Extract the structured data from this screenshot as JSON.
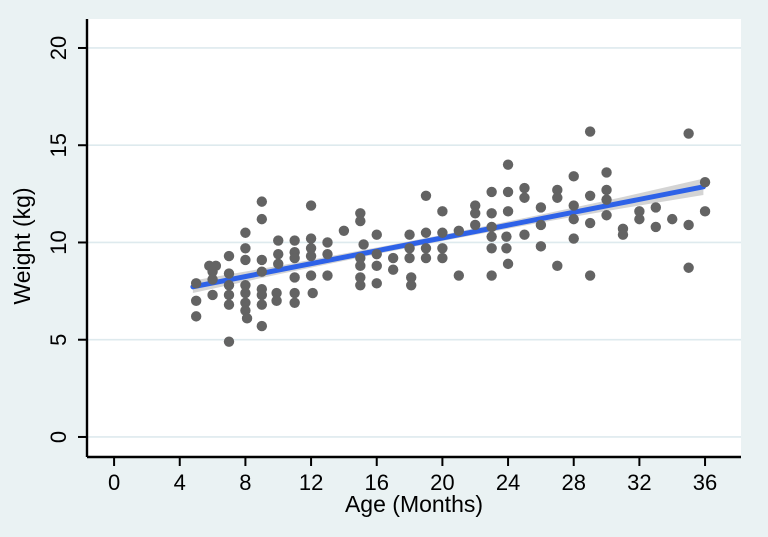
{
  "figure": {
    "background_color": "#EAF2F3",
    "plot_background_color": "#FFFFFF",
    "grid_color": "#DEEAEE",
    "axis_color": "#000000",
    "text_color": "#000000"
  },
  "chart_data": {
    "type": "scatter",
    "title": "",
    "xlabel": "Age (Months)",
    "ylabel": "Weight (kg)",
    "x_ticks": [
      0,
      4,
      8,
      12,
      16,
      20,
      24,
      28,
      32,
      36
    ],
    "y_ticks": [
      0,
      5,
      10,
      15,
      20
    ],
    "xlim": [
      -1.65,
      38.19
    ],
    "ylim": [
      -1.03,
      21.49
    ],
    "grid": "horizontal",
    "legend": "none",
    "marker_color": "#636363",
    "fit_line_color": "#2E62E8",
    "ci_band_color": "#CFCFCF",
    "fit_line": {
      "x": [
        4.8,
        35.9
      ],
      "y": [
        7.72,
        12.86
      ]
    },
    "ci_band": [
      {
        "x": 4.8,
        "lo": 7.4,
        "hi": 8.04
      },
      {
        "x": 10.0,
        "lo": 8.36,
        "hi": 8.8
      },
      {
        "x": 16.0,
        "lo": 9.4,
        "hi": 9.74
      },
      {
        "x": 20.4,
        "lo": 10.14,
        "hi": 10.46
      },
      {
        "x": 26.0,
        "lo": 11.03,
        "hi": 11.43
      },
      {
        "x": 31.0,
        "lo": 11.76,
        "hi": 12.34
      },
      {
        "x": 35.9,
        "lo": 12.44,
        "hi": 13.28
      }
    ],
    "points": [
      [
        5,
        7.9
      ],
      [
        5,
        7.0
      ],
      [
        5,
        6.2
      ],
      [
        5.8,
        8.8
      ],
      [
        6.2,
        8.8
      ],
      [
        6,
        8.5
      ],
      [
        6,
        8.1
      ],
      [
        6,
        7.3
      ],
      [
        7,
        9.3
      ],
      [
        7,
        8.4
      ],
      [
        7,
        7.8
      ],
      [
        7,
        7.3
      ],
      [
        7,
        6.8
      ],
      [
        7,
        4.9
      ],
      [
        8,
        10.5
      ],
      [
        8,
        9.7
      ],
      [
        8,
        9.1
      ],
      [
        8,
        7.8
      ],
      [
        8,
        7.4
      ],
      [
        8,
        6.9
      ],
      [
        8,
        6.5
      ],
      [
        8.1,
        6.1
      ],
      [
        9,
        12.1
      ],
      [
        9,
        11.2
      ],
      [
        9,
        9.1
      ],
      [
        9,
        8.5
      ],
      [
        9,
        7.6
      ],
      [
        9,
        7.3
      ],
      [
        9,
        6.8
      ],
      [
        9,
        5.7
      ],
      [
        10,
        10.1
      ],
      [
        10,
        9.4
      ],
      [
        10,
        8.9
      ],
      [
        9.9,
        7.4
      ],
      [
        9.9,
        7.0
      ],
      [
        11,
        10.1
      ],
      [
        11,
        9.5
      ],
      [
        11,
        9.2
      ],
      [
        11,
        8.2
      ],
      [
        11,
        7.4
      ],
      [
        11,
        6.9
      ],
      [
        12,
        11.9
      ],
      [
        12,
        10.2
      ],
      [
        12,
        9.7
      ],
      [
        12,
        9.3
      ],
      [
        12,
        8.3
      ],
      [
        12.1,
        7.4
      ],
      [
        13,
        10.0
      ],
      [
        13,
        9.4
      ],
      [
        13,
        8.3
      ],
      [
        14,
        10.6
      ],
      [
        15,
        11.5
      ],
      [
        15,
        11.1
      ],
      [
        15.2,
        9.9
      ],
      [
        15,
        9.2
      ],
      [
        15,
        8.8
      ],
      [
        15,
        8.2
      ],
      [
        15,
        7.8
      ],
      [
        16,
        10.4
      ],
      [
        16,
        9.4
      ],
      [
        16,
        8.8
      ],
      [
        16,
        7.9
      ],
      [
        17,
        9.2
      ],
      [
        17,
        8.6
      ],
      [
        18,
        10.4
      ],
      [
        18,
        9.7
      ],
      [
        18,
        9.2
      ],
      [
        18.1,
        8.2
      ],
      [
        18.1,
        7.8
      ],
      [
        19,
        12.4
      ],
      [
        19,
        10.5
      ],
      [
        19,
        9.7
      ],
      [
        19,
        9.2
      ],
      [
        20,
        11.6
      ],
      [
        20,
        10.5
      ],
      [
        20,
        9.7
      ],
      [
        20,
        9.2
      ],
      [
        21,
        10.6
      ],
      [
        21,
        8.3
      ],
      [
        22,
        11.9
      ],
      [
        22,
        11.5
      ],
      [
        22,
        10.9
      ],
      [
        23,
        12.6
      ],
      [
        23,
        11.5
      ],
      [
        23,
        10.8
      ],
      [
        23,
        10.3
      ],
      [
        23,
        9.7
      ],
      [
        23,
        8.3
      ],
      [
        24,
        14.0
      ],
      [
        24,
        12.6
      ],
      [
        24,
        11.6
      ],
      [
        23.9,
        10.3
      ],
      [
        23.9,
        9.7
      ],
      [
        24,
        8.9
      ],
      [
        25,
        12.8
      ],
      [
        25,
        12.3
      ],
      [
        25,
        10.4
      ],
      [
        26,
        11.8
      ],
      [
        26,
        10.9
      ],
      [
        26,
        9.8
      ],
      [
        27,
        12.7
      ],
      [
        27,
        12.3
      ],
      [
        27,
        8.8
      ],
      [
        28,
        13.4
      ],
      [
        28,
        11.9
      ],
      [
        28,
        11.2
      ],
      [
        28,
        10.2
      ],
      [
        29,
        15.7
      ],
      [
        29,
        12.4
      ],
      [
        29,
        11.0
      ],
      [
        29,
        8.3
      ],
      [
        30,
        13.6
      ],
      [
        30,
        12.7
      ],
      [
        30,
        12.2
      ],
      [
        30,
        11.4
      ],
      [
        31,
        10.7
      ],
      [
        31,
        10.4
      ],
      [
        32,
        11.6
      ],
      [
        32,
        11.2
      ],
      [
        33,
        11.8
      ],
      [
        33,
        10.8
      ],
      [
        34,
        11.2
      ],
      [
        35,
        15.6
      ],
      [
        35,
        10.9
      ],
      [
        35,
        8.7
      ],
      [
        36,
        13.1
      ],
      [
        36,
        11.6
      ]
    ]
  }
}
